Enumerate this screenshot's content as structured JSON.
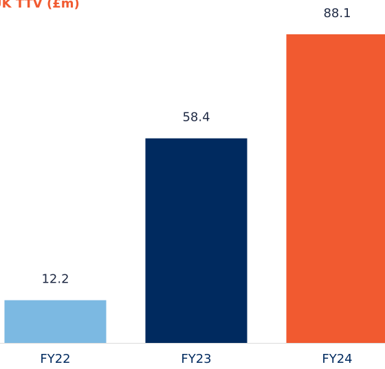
{
  "chart_data": {
    "type": "bar",
    "title": "UK TTV (£m)",
    "categories": [
      "FY22",
      "FY23",
      "FY24"
    ],
    "values": [
      12.2,
      58.4,
      88.1
    ],
    "colors": [
      "#7cb9e2",
      "#002a5f",
      "#f15a30"
    ],
    "title_color": "#f15a30"
  }
}
